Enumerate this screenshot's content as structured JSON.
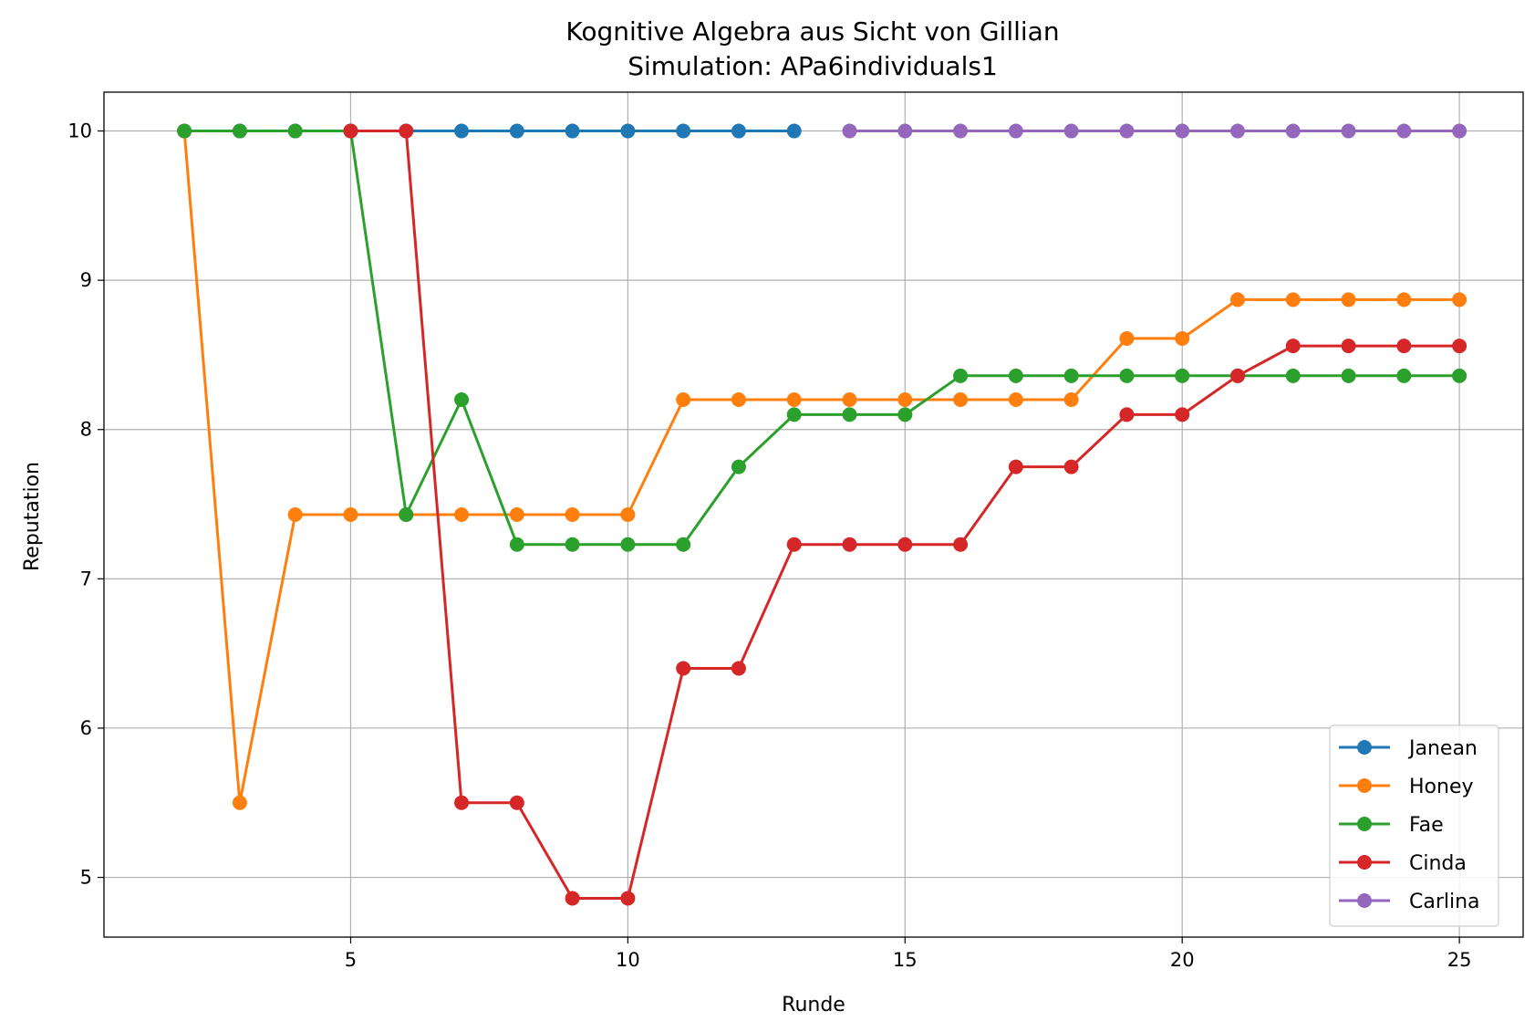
{
  "chart_data": {
    "type": "line",
    "title": "Kognitive Algebra aus Sicht von Gillian",
    "subtitle": "Simulation: APa6individuals1",
    "xlabel": "Runde",
    "ylabel": "Reputation",
    "xlim": [
      0.55,
      26.15
    ],
    "ylim": [
      4.6,
      10.26
    ],
    "xticks": [
      5,
      10,
      15,
      20,
      25
    ],
    "yticks": [
      5,
      6,
      7,
      8,
      9,
      10
    ],
    "grid": true,
    "legend_position": "lower right",
    "series": [
      {
        "name": "Janean",
        "color": "#1f77b4",
        "x": [
          2,
          3,
          4,
          5,
          6,
          7,
          8,
          9,
          10,
          11,
          12,
          13
        ],
        "y": [
          10,
          10,
          10,
          10,
          10,
          10,
          10,
          10,
          10,
          10,
          10,
          10
        ]
      },
      {
        "name": "Honey",
        "color": "#ff7f0e",
        "x": [
          2,
          3,
          4,
          5,
          6,
          7,
          8,
          9,
          10,
          11,
          12,
          13,
          14,
          15,
          16,
          17,
          18,
          19,
          20,
          21,
          22,
          23,
          24,
          25
        ],
        "y": [
          10,
          5.5,
          7.43,
          7.43,
          7.43,
          7.43,
          7.43,
          7.43,
          7.43,
          8.2,
          8.2,
          8.2,
          8.2,
          8.2,
          8.2,
          8.2,
          8.2,
          8.61,
          8.61,
          8.87,
          8.87,
          8.87,
          8.87,
          8.87
        ]
      },
      {
        "name": "Fae",
        "color": "#2ca02c",
        "x": [
          2,
          3,
          4,
          5,
          6,
          7,
          8,
          9,
          10,
          11,
          12,
          13,
          14,
          15,
          16,
          17,
          18,
          19,
          20,
          21,
          22,
          23,
          24,
          25
        ],
        "y": [
          10,
          10,
          10,
          10,
          7.43,
          8.2,
          7.23,
          7.23,
          7.23,
          7.23,
          7.75,
          8.1,
          8.1,
          8.1,
          8.36,
          8.36,
          8.36,
          8.36,
          8.36,
          8.36,
          8.36,
          8.36,
          8.36,
          8.36
        ]
      },
      {
        "name": "Cinda",
        "color": "#d62728",
        "x": [
          5,
          6,
          7,
          8,
          9,
          10,
          11,
          12,
          13,
          14,
          15,
          16,
          17,
          18,
          19,
          20,
          21,
          22,
          23,
          24,
          25
        ],
        "y": [
          10,
          10,
          5.5,
          5.5,
          4.86,
          4.86,
          6.4,
          6.4,
          7.23,
          7.23,
          7.23,
          7.23,
          7.75,
          7.75,
          8.1,
          8.1,
          8.36,
          8.56,
          8.56,
          8.56,
          8.56
        ]
      },
      {
        "name": "Carlina",
        "color": "#9467bd",
        "x": [
          14,
          15,
          16,
          17,
          18,
          19,
          20,
          21,
          22,
          23,
          24,
          25
        ],
        "y": [
          10,
          10,
          10,
          10,
          10,
          10,
          10,
          10,
          10,
          10,
          10,
          10
        ]
      }
    ]
  }
}
